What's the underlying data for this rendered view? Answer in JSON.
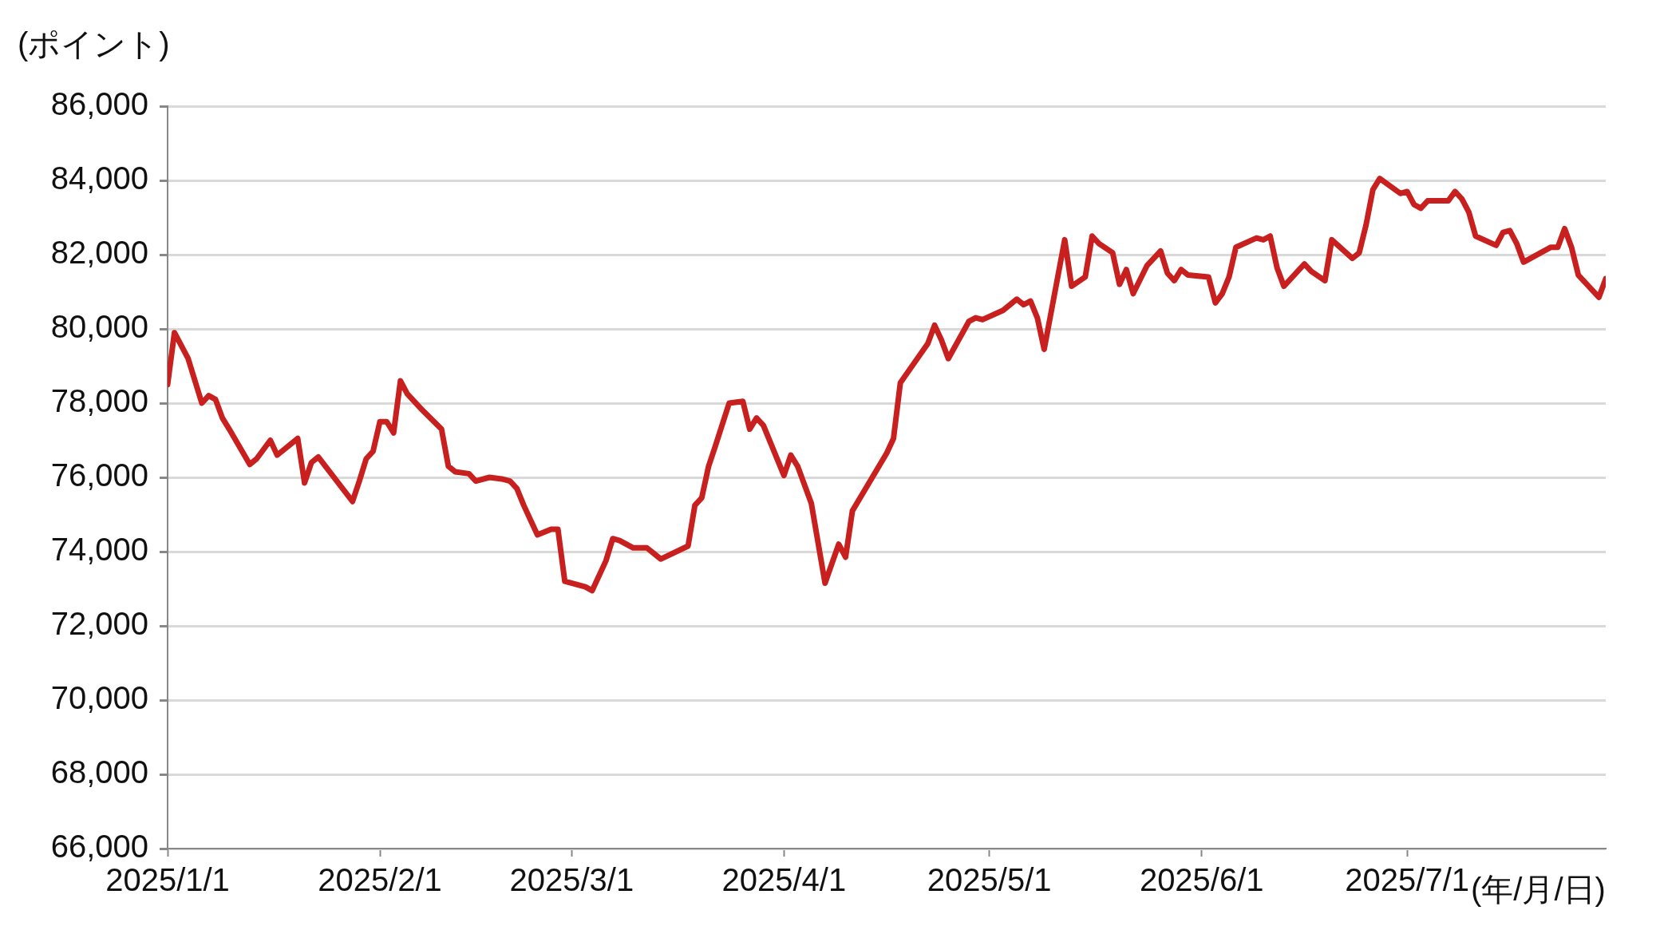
{
  "chart_data": {
    "type": "line",
    "ylabel": "(ポイント)",
    "xlabel": "(年/月/日)",
    "x": [
      "2025-01-01",
      "2025-01-02",
      "2025-01-04",
      "2025-01-06",
      "2025-01-07",
      "2025-01-08",
      "2025-01-09",
      "2025-01-10",
      "2025-01-13",
      "2025-01-14",
      "2025-01-16",
      "2025-01-17",
      "2025-01-20",
      "2025-01-21",
      "2025-01-22",
      "2025-01-23",
      "2025-01-28",
      "2025-01-29",
      "2025-01-30",
      "2025-01-31",
      "2025-02-01",
      "2025-02-02",
      "2025-02-03",
      "2025-02-04",
      "2025-02-05",
      "2025-02-07",
      "2025-02-10",
      "2025-02-11",
      "2025-02-12",
      "2025-02-14",
      "2025-02-15",
      "2025-02-17",
      "2025-02-19",
      "2025-02-20",
      "2025-02-21",
      "2025-02-22",
      "2025-02-24",
      "2025-02-26",
      "2025-02-27",
      "2025-02-28",
      "2025-03-03",
      "2025-03-04",
      "2025-03-06",
      "2025-03-07",
      "2025-03-08",
      "2025-03-10",
      "2025-03-12",
      "2025-03-13",
      "2025-03-14",
      "2025-03-18",
      "2025-03-19",
      "2025-03-20",
      "2025-03-21",
      "2025-03-22",
      "2025-03-24",
      "2025-03-26",
      "2025-03-27",
      "2025-03-28",
      "2025-03-29",
      "2025-04-01",
      "2025-04-02",
      "2025-04-03",
      "2025-04-05",
      "2025-04-07",
      "2025-04-09",
      "2025-04-10",
      "2025-04-11",
      "2025-04-16",
      "2025-04-17",
      "2025-04-18",
      "2025-04-22",
      "2025-04-23",
      "2025-04-24",
      "2025-04-25",
      "2025-04-28",
      "2025-04-29",
      "2025-04-30",
      "2025-05-03",
      "2025-05-05",
      "2025-05-06",
      "2025-05-07",
      "2025-05-08",
      "2025-05-09",
      "2025-05-12",
      "2025-05-13",
      "2025-05-15",
      "2025-05-16",
      "2025-05-17",
      "2025-05-19",
      "2025-05-20",
      "2025-05-21",
      "2025-05-22",
      "2025-05-24",
      "2025-05-26",
      "2025-05-27",
      "2025-05-28",
      "2025-05-29",
      "2025-05-30",
      "2025-06-02",
      "2025-06-03",
      "2025-06-04",
      "2025-06-05",
      "2025-06-06",
      "2025-06-09",
      "2025-06-10",
      "2025-06-11",
      "2025-06-12",
      "2025-06-13",
      "2025-06-16",
      "2025-06-17",
      "2025-06-19",
      "2025-06-20",
      "2025-06-23",
      "2025-06-24",
      "2025-06-25",
      "2025-06-26",
      "2025-06-27",
      "2025-06-30",
      "2025-07-01",
      "2025-07-02",
      "2025-07-03",
      "2025-07-04",
      "2025-07-07",
      "2025-07-08",
      "2025-07-09",
      "2025-07-10",
      "2025-07-11",
      "2025-07-14",
      "2025-07-15",
      "2025-07-16",
      "2025-07-17",
      "2025-07-18",
      "2025-07-22",
      "2025-07-23",
      "2025-07-24",
      "2025-07-25",
      "2025-07-26",
      "2025-07-29",
      "2025-07-30"
    ],
    "series": [
      {
        "color": "#c8201f",
        "values": [
          78500,
          79900,
          79200,
          78000,
          78200,
          78100,
          77600,
          77300,
          76350,
          76500,
          77000,
          76600,
          77050,
          75850,
          76400,
          76550,
          75350,
          75900,
          76500,
          76700,
          77500,
          77500,
          77200,
          78600,
          78250,
          77850,
          77300,
          76300,
          76150,
          76100,
          75900,
          76000,
          75950,
          75900,
          75700,
          75250,
          74450,
          74600,
          74600,
          73200,
          73050,
          72950,
          73750,
          74350,
          74300,
          74100,
          74100,
          73950,
          73800,
          74150,
          75250,
          75450,
          76300,
          76850,
          78000,
          78050,
          77300,
          77600,
          77400,
          76050,
          76600,
          76300,
          75300,
          73150,
          74200,
          73850,
          75100,
          76650,
          77050,
          78550,
          79600,
          80100,
          79700,
          79200,
          80200,
          80300,
          80250,
          80500,
          80800,
          80650,
          80750,
          80300,
          79450,
          82400,
          81150,
          81400,
          82500,
          82300,
          82050,
          81200,
          81600,
          80950,
          81700,
          82100,
          81500,
          81300,
          81600,
          81450,
          81400,
          80700,
          80950,
          81400,
          82200,
          82450,
          82400,
          82500,
          81650,
          81150,
          81750,
          81550,
          81300,
          82400,
          81900,
          82050,
          82800,
          83750,
          84050,
          83650,
          83700,
          83350,
          83250,
          83450,
          83450,
          83700,
          83500,
          83150,
          82500,
          82250,
          82600,
          82650,
          82300,
          81800,
          82200,
          82200,
          82700,
          82200,
          81450,
          80850,
          81350
        ]
      }
    ],
    "xlim": [
      "2025-01-01",
      "2025-07-30"
    ],
    "xticks": [
      {
        "value": "2025-01-01",
        "label": "2025/1/1"
      },
      {
        "value": "2025-02-01",
        "label": "2025/2/1"
      },
      {
        "value": "2025-03-01",
        "label": "2025/3/1"
      },
      {
        "value": "2025-04-01",
        "label": "2025/4/1"
      },
      {
        "value": "2025-05-01",
        "label": "2025/5/1"
      },
      {
        "value": "2025-06-01",
        "label": "2025/6/1"
      },
      {
        "value": "2025-07-01",
        "label": "2025/7/1"
      }
    ],
    "ylim": [
      66000,
      86000
    ],
    "yticks": [
      {
        "value": 66000,
        "label": "66,000"
      },
      {
        "value": 68000,
        "label": "68,000"
      },
      {
        "value": 70000,
        "label": "70,000"
      },
      {
        "value": 72000,
        "label": "72,000"
      },
      {
        "value": 74000,
        "label": "74,000"
      },
      {
        "value": 76000,
        "label": "76,000"
      },
      {
        "value": 78000,
        "label": "78,000"
      },
      {
        "value": 80000,
        "label": "80,000"
      },
      {
        "value": 82000,
        "label": "82,000"
      },
      {
        "value": 84000,
        "label": "84,000"
      },
      {
        "value": 86000,
        "label": "86,000"
      }
    ],
    "grid": "y",
    "legend": false,
    "marker": "none",
    "line_style": "solid"
  }
}
